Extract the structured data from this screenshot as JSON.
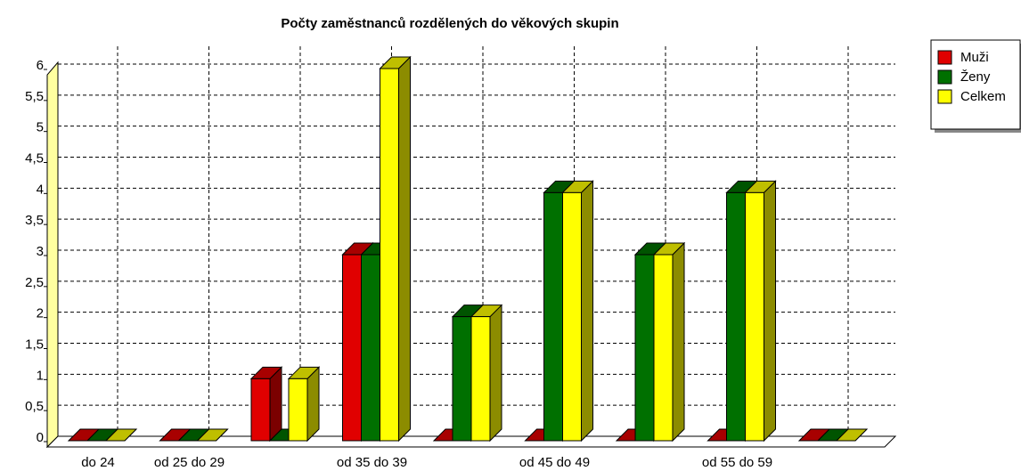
{
  "chart_data": {
    "type": "bar3d",
    "title": "Počty zaměstnanců rozdělených do věkových skupin",
    "categories": [
      "do 24",
      "od 25 do 29",
      null,
      "od 35 do 39",
      null,
      "od 45 do 49",
      null,
      "od 55 do 59",
      null
    ],
    "series": [
      {
        "name": "Muži",
        "color": "#e00000",
        "values": [
          0,
          0,
          1,
          3,
          0,
          0,
          0,
          0,
          0
        ]
      },
      {
        "name": "Ženy",
        "color": "#007000",
        "values": [
          0,
          0,
          0,
          3,
          2,
          4,
          3,
          4,
          0
        ]
      },
      {
        "name": "Celkem",
        "color": "#ffff00",
        "values": [
          0,
          0,
          1,
          6,
          2,
          4,
          3,
          4,
          0
        ]
      }
    ],
    "ylim": [
      0,
      6
    ],
    "yticks": [
      0,
      {
        "value": 0.5,
        "label": "0,5"
      },
      1,
      {
        "value": 1.5,
        "label": "1,5"
      },
      2,
      {
        "value": 2.5,
        "label": "2,5"
      },
      3,
      {
        "value": 3.5,
        "label": "3,5"
      },
      4,
      {
        "value": 4.5,
        "label": "4,5"
      },
      5,
      {
        "value": 5.5,
        "label": "5,5"
      },
      6
    ],
    "grid": true,
    "legend": "upper right"
  }
}
